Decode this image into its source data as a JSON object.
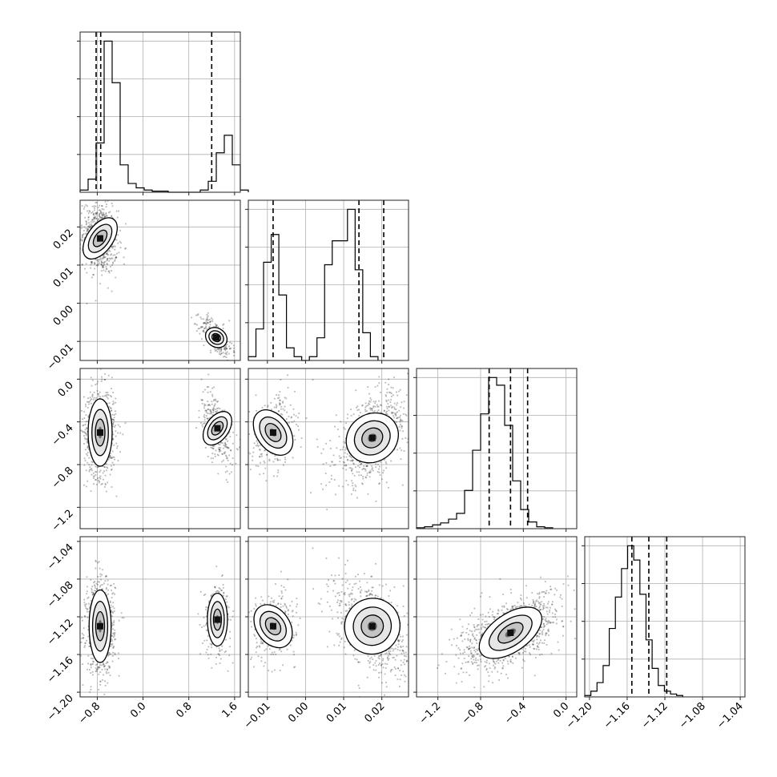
{
  "chart_data": {
    "type": "corner",
    "title": "",
    "quantiles": [
      0.16,
      0.5,
      0.84
    ],
    "parameters": [
      {
        "name": "",
        "range": [
          -1.1,
          1.7
        ],
        "ticks": [
          -0.8,
          0.0,
          0.8,
          1.6
        ],
        "tick_labels": [
          "−0.8",
          "0.0",
          "0.8",
          "1.6"
        ],
        "quantile_values": [
          -0.82,
          -0.74,
          1.2
        ],
        "hist": {
          "edges_start": -1.1,
          "bin_width": 0.14,
          "counts": [
            2,
            12,
            45,
            138,
            100,
            25,
            8,
            4,
            2,
            1,
            1,
            0,
            0,
            0,
            0,
            2,
            10,
            36,
            52,
            25,
            2
          ]
        }
      },
      {
        "name": "",
        "range": [
          -0.015,
          0.027
        ],
        "ticks": [
          -0.01,
          0.0,
          0.01,
          0.02
        ],
        "tick_labels": [
          "−0.01",
          "0.00",
          "0.01",
          "0.02"
        ],
        "quantile_values": [
          -0.0085,
          0.014,
          0.0205
        ],
        "hist": {
          "edges_start": -0.015,
          "bin_width": 0.002,
          "counts": [
            3,
            25,
            78,
            100,
            52,
            10,
            3,
            0,
            3,
            18,
            76,
            95,
            95,
            120,
            72,
            22,
            3
          ]
        }
      },
      {
        "name": "",
        "range": [
          -1.4,
          0.1
        ],
        "ticks": [
          -1.2,
          -0.8,
          -0.4,
          0.0
        ],
        "tick_labels": [
          "−1.2",
          "−0.8",
          "−0.4",
          "0.0"
        ],
        "quantile_values": [
          -0.72,
          -0.52,
          -0.36
        ],
        "hist": {
          "edges_start": -1.4,
          "bin_width": 0.075,
          "counts": [
            1,
            2,
            4,
            6,
            10,
            16,
            40,
            82,
            120,
            158,
            150,
            108,
            50,
            20,
            7,
            2,
            1
          ]
        }
      },
      {
        "name": "",
        "range": [
          -1.205,
          -1.035
        ],
        "ticks": [
          -1.2,
          -1.16,
          -1.12,
          -1.08,
          -1.04
        ],
        "tick_labels": [
          "−1.20",
          "−1.16",
          "−1.12",
          "−1.08",
          "−1.04"
        ],
        "quantile_values": [
          -1.155,
          -1.137,
          -1.118
        ],
        "hist": {
          "edges_start": -1.205,
          "bin_width": 0.0065,
          "counts": [
            1,
            4,
            10,
            22,
            48,
            70,
            90,
            106,
            96,
            72,
            40,
            20,
            8,
            4,
            2,
            1
          ]
        }
      }
    ],
    "joint": {
      "pair_0_1": {
        "modes": [
          {
            "cx": -0.75,
            "cy": 0.017,
            "sx": 0.13,
            "sy": 0.0038,
            "rho": -0.15,
            "w": 0.7
          },
          {
            "cx": 1.28,
            "cy": -0.009,
            "sx": 0.12,
            "sy": 0.0022,
            "rho": -0.6,
            "w": 0.3
          }
        ]
      },
      "pair_0_2": {
        "modes": [
          {
            "cx": -0.75,
            "cy": -0.5,
            "sx": 0.12,
            "sy": 0.18,
            "rho": 0.0,
            "w": 0.7
          },
          {
            "cx": 1.3,
            "cy": -0.46,
            "sx": 0.12,
            "sy": 0.15,
            "rho": -0.55,
            "w": 0.3
          }
        ]
      },
      "pair_1_2": {
        "modes": [
          {
            "cx": -0.0085,
            "cy": -0.5,
            "sx": 0.0025,
            "sy": 0.15,
            "rho": 0.2,
            "w": 0.3
          },
          {
            "cx": 0.0175,
            "cy": -0.55,
            "sx": 0.0042,
            "sy": 0.18,
            "rho": 0.5,
            "w": 0.7
          }
        ]
      },
      "pair_0_3": {
        "modes": [
          {
            "cx": -0.75,
            "cy": -1.13,
            "sx": 0.11,
            "sy": 0.022,
            "rho": 0.0,
            "w": 0.7
          },
          {
            "cx": 1.3,
            "cy": -1.123,
            "sx": 0.1,
            "sy": 0.016,
            "rho": 0.0,
            "w": 0.3
          }
        ]
      },
      "pair_1_3": {
        "modes": [
          {
            "cx": -0.0085,
            "cy": -1.13,
            "sx": 0.0025,
            "sy": 0.015,
            "rho": 0.1,
            "w": 0.3
          },
          {
            "cx": 0.0175,
            "cy": -1.13,
            "sx": 0.0042,
            "sy": 0.022,
            "rho": -0.4,
            "w": 0.7
          }
        ]
      },
      "pair_2_3": {
        "modes": [
          {
            "cx": -0.52,
            "cy": -1.137,
            "sx": 0.2,
            "sy": 0.017,
            "rho": 0.55,
            "w": 1.0
          }
        ]
      }
    }
  }
}
